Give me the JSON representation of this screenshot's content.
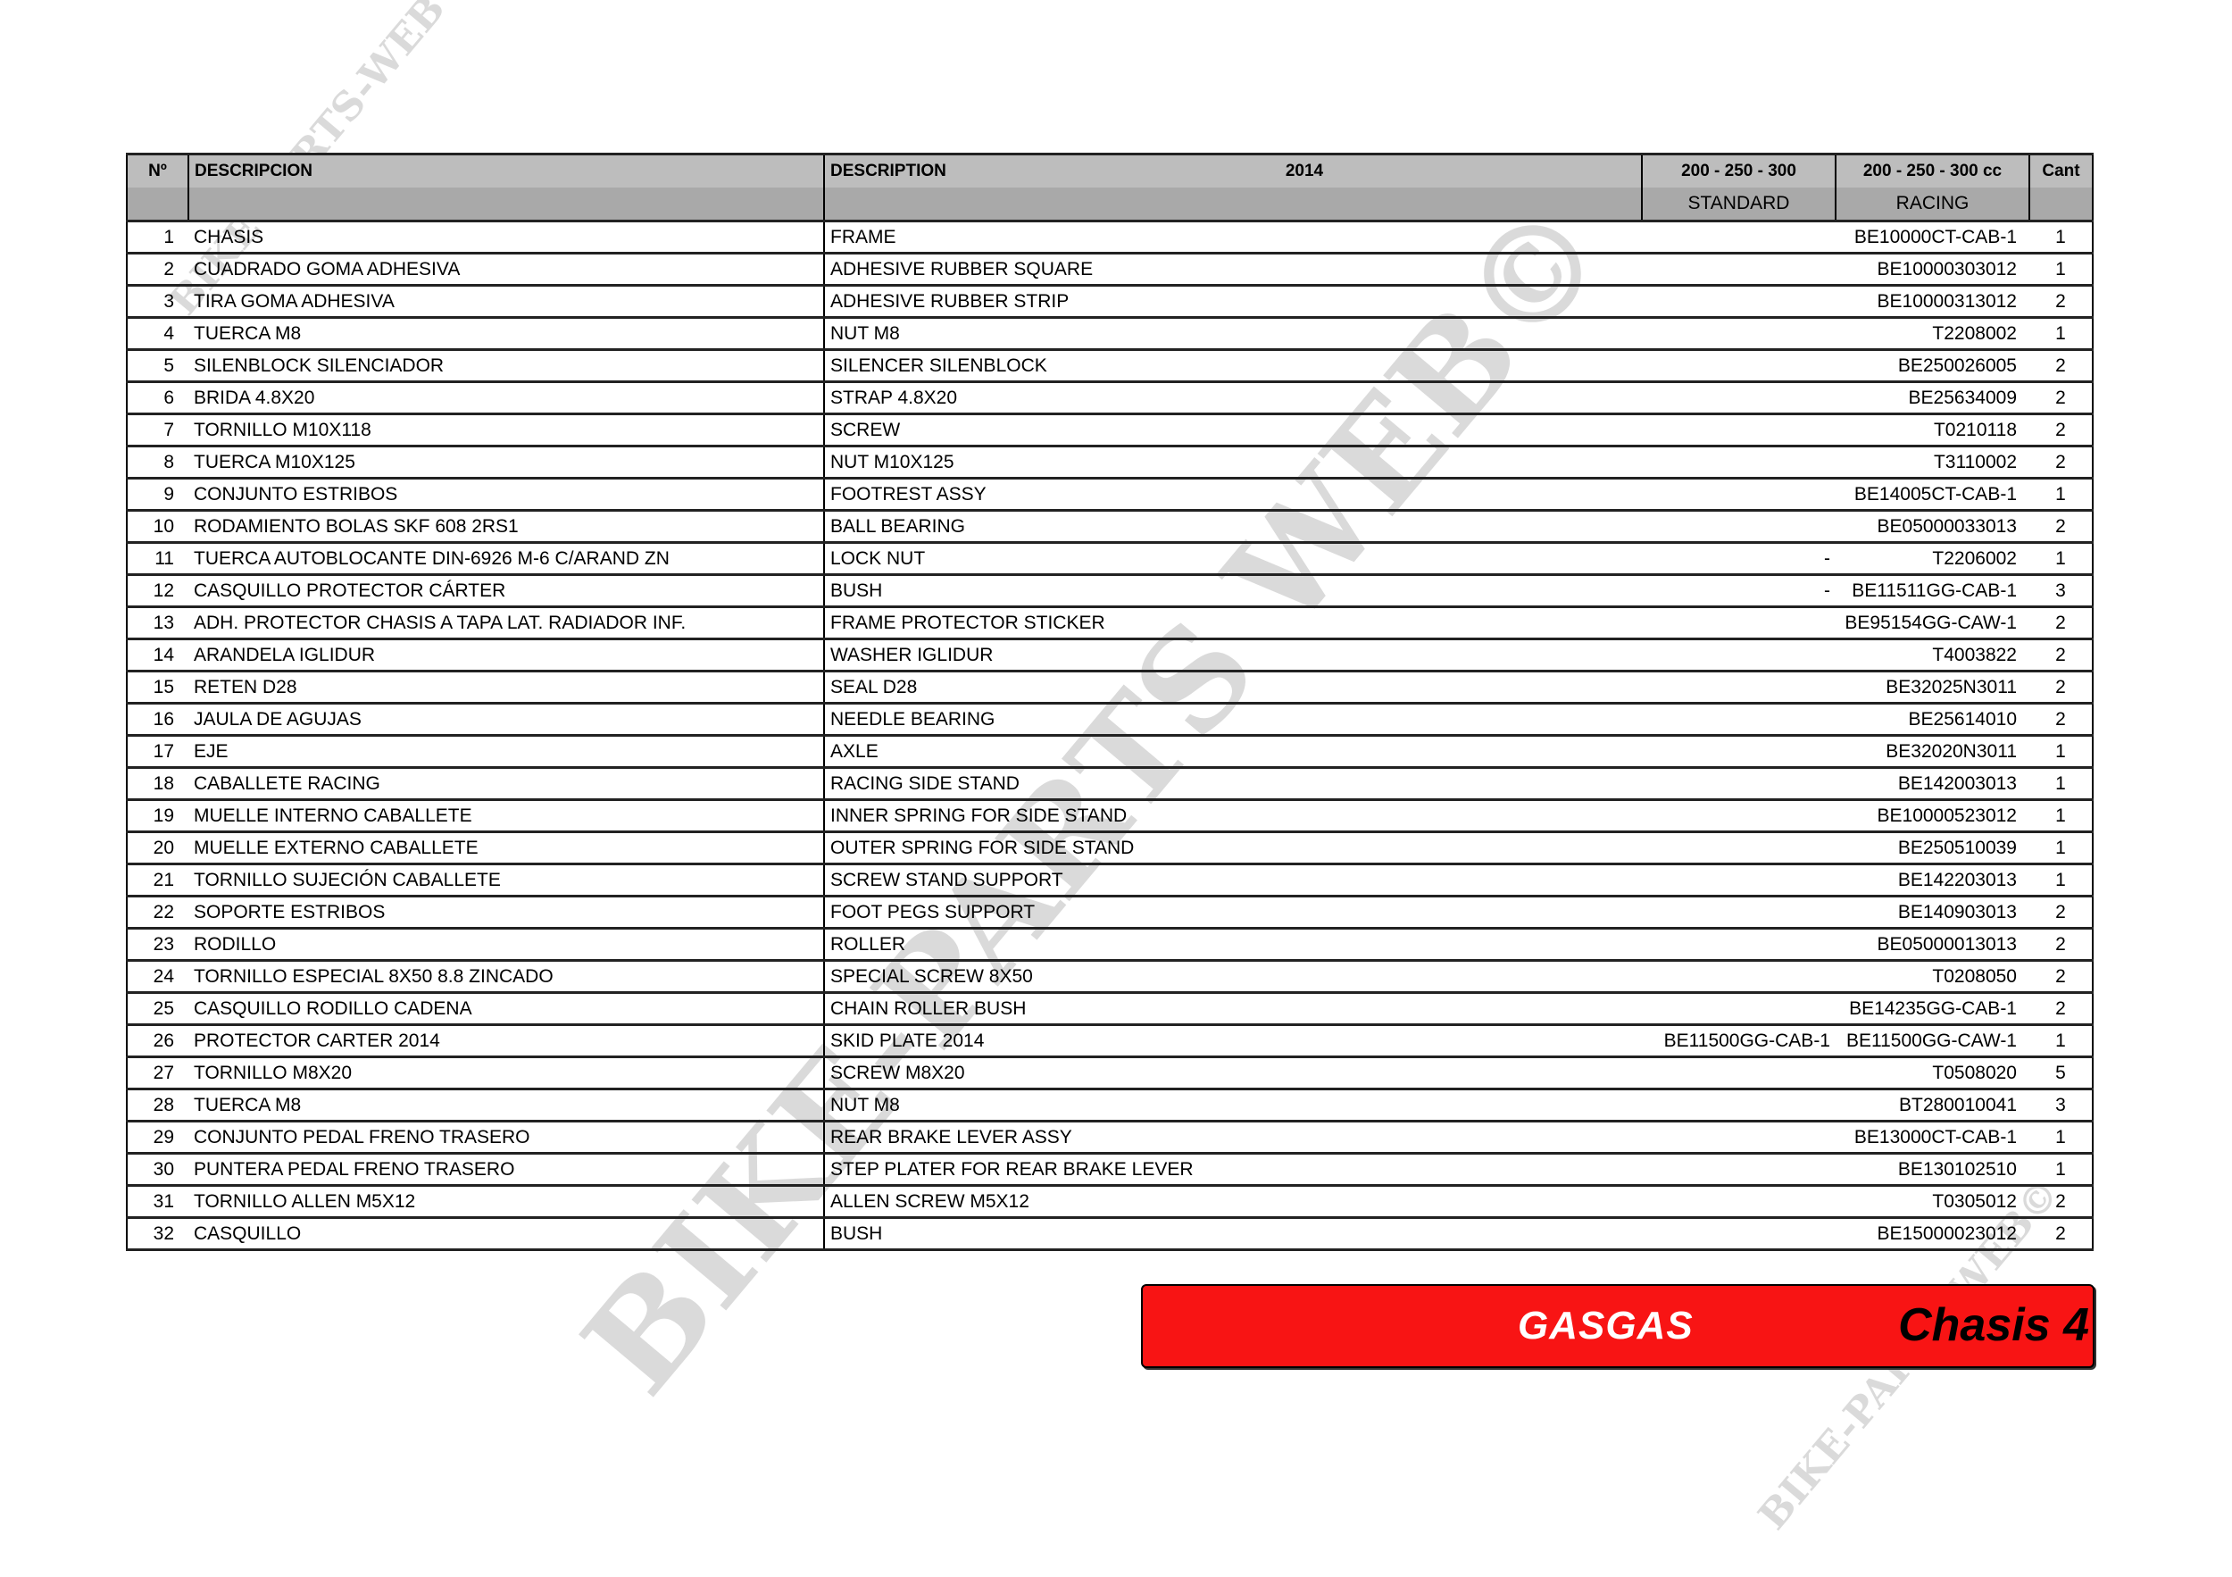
{
  "header": {
    "no": "Nº",
    "descripcion": "DESCRIPCION",
    "description": "DESCRIPTION",
    "year": "2014",
    "standard_top": "200 - 250 - 300",
    "standard_bottom": "STANDARD",
    "racing_top": "200 - 250 - 300 cc",
    "racing_bottom": "RACING",
    "cant": "Cant"
  },
  "rows": [
    {
      "no": "1",
      "es": "CHASIS",
      "en": "FRAME",
      "std": "",
      "racing": "BE10000CT-CAB-1",
      "cant": "1"
    },
    {
      "no": "2",
      "es": "CUADRADO GOMA ADHESIVA",
      "en": "ADHESIVE RUBBER SQUARE",
      "std": "",
      "racing": "BE10000303012",
      "cant": "1"
    },
    {
      "no": "3",
      "es": "TIRA GOMA ADHESIVA",
      "en": "ADHESIVE RUBBER STRIP",
      "std": "",
      "racing": "BE10000313012",
      "cant": "2"
    },
    {
      "no": "4",
      "es": "TUERCA M8",
      "en": "NUT M8",
      "std": "",
      "racing": "T2208002",
      "cant": "1"
    },
    {
      "no": "5",
      "es": "SILENBLOCK SILENCIADOR",
      "en": "SILENCER SILENBLOCK",
      "std": "",
      "racing": "BE250026005",
      "cant": "2"
    },
    {
      "no": "6",
      "es": "BRIDA 4.8X20",
      "en": "STRAP 4.8X20",
      "std": "",
      "racing": "BE25634009",
      "cant": "2"
    },
    {
      "no": "7",
      "es": "TORNILLO M10X118",
      "en": "SCREW",
      "std": "",
      "racing": "T0210118",
      "cant": "2"
    },
    {
      "no": "8",
      "es": "TUERCA M10X125",
      "en": "NUT M10X125",
      "std": "",
      "racing": "T3110002",
      "cant": "2"
    },
    {
      "no": "9",
      "es": "CONJUNTO ESTRIBOS",
      "en": "FOOTREST ASSY",
      "std": "",
      "racing": "BE14005CT-CAB-1",
      "cant": "1"
    },
    {
      "no": "10",
      "es": "RODAMIENTO BOLAS SKF 608 2RS1",
      "en": "BALL BEARING",
      "std": "",
      "racing": "BE05000033013",
      "cant": "2"
    },
    {
      "no": "11",
      "es": "TUERCA AUTOBLOCANTE DIN-6926 M-6 C/ARAND ZN",
      "en": "LOCK NUT",
      "std": "-",
      "racing": "T2206002",
      "cant": "1"
    },
    {
      "no": "12",
      "es": "CASQUILLO PROTECTOR CÁRTER",
      "en": "BUSH",
      "std": "-",
      "racing": "BE11511GG-CAB-1",
      "cant": "3"
    },
    {
      "no": "13",
      "es": "ADH. PROTECTOR CHASIS A TAPA LAT. RADIADOR INF.",
      "en": "FRAME PROTECTOR STICKER",
      "std": "",
      "racing": "BE95154GG-CAW-1",
      "cant": "2"
    },
    {
      "no": "14",
      "es": "ARANDELA IGLIDUR",
      "en": "WASHER IGLIDUR",
      "std": "",
      "racing": "T4003822",
      "cant": "2"
    },
    {
      "no": "15",
      "es": "RETEN D28",
      "en": "SEAL D28",
      "std": "",
      "racing": "BE32025N3011",
      "cant": "2"
    },
    {
      "no": "16",
      "es": "JAULA DE AGUJAS",
      "en": "NEEDLE BEARING",
      "std": "",
      "racing": "BE25614010",
      "cant": "2"
    },
    {
      "no": "17",
      "es": "EJE",
      "en": "AXLE",
      "std": "",
      "racing": "BE32020N3011",
      "cant": "1"
    },
    {
      "no": "18",
      "es": "CABALLETE RACING",
      "en": "RACING SIDE STAND",
      "std": "",
      "racing": "BE142003013",
      "cant": "1"
    },
    {
      "no": "19",
      "es": "MUELLE INTERNO CABALLETE",
      "en": "INNER SPRING FOR SIDE STAND",
      "std": "",
      "racing": "BE10000523012",
      "cant": "1"
    },
    {
      "no": "20",
      "es": "MUELLE EXTERNO CABALLETE",
      "en": "OUTER SPRING FOR SIDE STAND",
      "std": "",
      "racing": "BE250510039",
      "cant": "1"
    },
    {
      "no": "21",
      "es": "TORNILLO SUJECIÓN CABALLETE",
      "en": "SCREW STAND SUPPORT",
      "std": "",
      "racing": "BE142203013",
      "cant": "1"
    },
    {
      "no": "22",
      "es": "SOPORTE ESTRIBOS",
      "en": "FOOT PEGS SUPPORT",
      "std": "",
      "racing": "BE140903013",
      "cant": "2"
    },
    {
      "no": "23",
      "es": "RODILLO",
      "en": "ROLLER",
      "std": "",
      "racing": "BE05000013013",
      "cant": "2"
    },
    {
      "no": "24",
      "es": "TORNILLO ESPECIAL 8X50 8.8 ZINCADO",
      "en": "SPECIAL SCREW 8X50",
      "std": "",
      "racing": "T0208050",
      "cant": "2"
    },
    {
      "no": "25",
      "es": "CASQUILLO RODILLO CADENA",
      "en": "CHAIN ROLLER BUSH",
      "std": "",
      "racing": "BE14235GG-CAB-1",
      "cant": "2"
    },
    {
      "no": "26",
      "es": "PROTECTOR CARTER 2014",
      "en": "SKID PLATE 2014",
      "std": "BE11500GG-CAB-1",
      "racing": "BE11500GG-CAW-1",
      "cant": "1"
    },
    {
      "no": "27",
      "es": "TORNILLO M8X20",
      "en": "SCREW M8X20",
      "std": "",
      "racing": "T0508020",
      "cant": "5"
    },
    {
      "no": "28",
      "es": "TUERCA M8",
      "en": "NUT M8",
      "std": "",
      "racing": "BT280010041",
      "cant": "3"
    },
    {
      "no": "29",
      "es": "CONJUNTO PEDAL FRENO TRASERO",
      "en": "REAR BRAKE LEVER ASSY",
      "std": "",
      "racing": "BE13000CT-CAB-1",
      "cant": "1"
    },
    {
      "no": "30",
      "es": "PUNTERA PEDAL FRENO TRASERO",
      "en": "STEP PLATER FOR REAR BRAKE LEVER",
      "std": "",
      "racing": "BE130102510",
      "cant": "1"
    },
    {
      "no": "31",
      "es": "TORNILLO ALLEN M5X12",
      "en": "ALLEN SCREW M5X12",
      "std": "",
      "racing": "T0305012",
      "cant": "2"
    },
    {
      "no": "32",
      "es": "CASQUILLO",
      "en": "BUSH",
      "std": "",
      "racing": "BE15000023012",
      "cant": "2"
    }
  ],
  "banner": {
    "brand": "GASGAS",
    "section": "Chasis 4",
    "color": "#f81414"
  },
  "watermarks": [
    "BIKE-PARTS-WEB©",
    "BIKE-PARTS WEB©",
    "BIKE-PARTS-WEB©"
  ]
}
